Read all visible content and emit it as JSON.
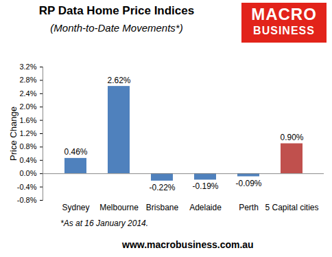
{
  "chart_data": {
    "type": "bar",
    "title": "RP Data Home Price Indices",
    "subtitle": "(Month-to-Date Movements*)",
    "logo": [
      "MACRO",
      "BUSINESS"
    ],
    "ylabel": "Price Change",
    "categories": [
      "Sydney",
      "Melbourne",
      "Brisbane",
      "Adelaide",
      "Perth",
      "5 Capital cities"
    ],
    "values": [
      0.46,
      2.62,
      -0.22,
      -0.19,
      -0.09,
      0.9
    ],
    "value_labels": [
      "0.46%",
      "2.62%",
      "-0.22%",
      "-0.19%",
      "-0.09%",
      "0.90%"
    ],
    "colors": [
      "#4f81bd",
      "#4f81bd",
      "#4f81bd",
      "#4f81bd",
      "#4f81bd",
      "#c0504d"
    ],
    "ylim": [
      -0.8,
      3.2
    ],
    "yticks": [
      {
        "value": -0.8,
        "label": "-0.8%"
      },
      {
        "value": -0.4,
        "label": "-0.4%"
      },
      {
        "value": 0,
        "label": "0.0%"
      },
      {
        "value": 0.4,
        "label": "0.4%"
      },
      {
        "value": 0.8,
        "label": "0.8%"
      },
      {
        "value": 1.2,
        "label": "1.2%"
      },
      {
        "value": 1.6,
        "label": "1.6%"
      },
      {
        "value": 2.0,
        "label": "2.0%"
      },
      {
        "value": 2.4,
        "label": "2.4%"
      },
      {
        "value": 2.8,
        "label": "2.8%"
      },
      {
        "value": 3.2,
        "label": "3.2%"
      }
    ],
    "grid": false,
    "data_labels": true,
    "annotations": [
      "*As at 16 January 2014.",
      "www.macrobusiness.com.au"
    ]
  }
}
